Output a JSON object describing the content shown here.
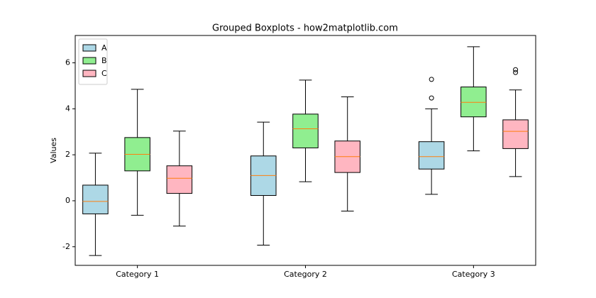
{
  "chart_data": {
    "type": "boxplot",
    "title": "Grouped Boxplots - how2matplotlib.com",
    "y_label": "Values",
    "categories": [
      "Category 1",
      "Category 2",
      "Category 3"
    ],
    "xlim": [
      0.63,
      3.37
    ],
    "ylim": [
      -2.81,
      7.19
    ],
    "yticks": [
      -2,
      0,
      2,
      4,
      6
    ],
    "legend_position": "upper left",
    "median_color": "#ff7f0e",
    "series": [
      {
        "name": "A",
        "color": "#add8e6",
        "offset": -0.25,
        "low": [
          -2.38,
          -1.93,
          0.28
        ],
        "q1": [
          -0.57,
          0.23,
          1.38
        ],
        "median": [
          -0.03,
          1.1,
          1.92
        ],
        "q3": [
          0.68,
          1.95,
          2.57
        ],
        "high": [
          2.07,
          3.42,
          4.0
        ],
        "outliers": [
          [],
          [],
          [
            4.47,
            5.28
          ]
        ]
      },
      {
        "name": "B",
        "color": "#90ee90",
        "offset": 0,
        "low": [
          -0.63,
          0.83,
          2.17
        ],
        "q1": [
          1.3,
          2.3,
          3.65
        ],
        "median": [
          2.02,
          3.13,
          4.28
        ],
        "q3": [
          2.75,
          3.77,
          4.95
        ],
        "high": [
          4.85,
          5.25,
          6.7
        ],
        "outliers": [
          [],
          [],
          []
        ]
      },
      {
        "name": "C",
        "color": "#ffb6c1",
        "offset": 0.25,
        "low": [
          -1.1,
          -0.45,
          1.05
        ],
        "q1": [
          0.32,
          1.23,
          2.27
        ],
        "median": [
          0.98,
          1.92,
          3.02
        ],
        "q3": [
          1.52,
          2.6,
          3.52
        ],
        "high": [
          3.03,
          4.52,
          4.82
        ],
        "outliers": [
          [],
          [],
          [
            5.58,
            5.7
          ]
        ]
      }
    ]
  }
}
